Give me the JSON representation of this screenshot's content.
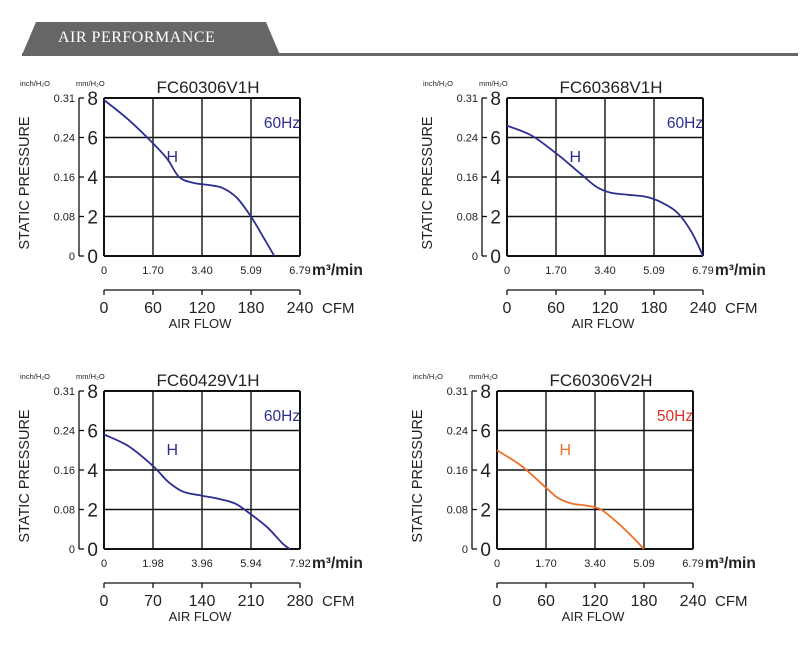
{
  "header": {
    "title": "AIR PERFORMANCE"
  },
  "chart_data": [
    {
      "type": "line",
      "title": "FC60306V1H",
      "frequency": "60Hz",
      "freq_color": "#2b2e8f",
      "curve_color": "#2b2e8f",
      "curve_label": "H",
      "ylabel": "STATIC PRESSURE",
      "unit_inch": "inch/H₂O",
      "unit_mm": "mm/H₂O",
      "ylim": [
        0,
        8
      ],
      "yticks_mm": [
        "0",
        "2",
        "4",
        "6",
        "8"
      ],
      "yticks_inch": [
        "0",
        "0.08",
        "0.16",
        "0.24",
        "0.31"
      ],
      "xlim_m3": [
        0,
        6.79
      ],
      "xticks_m3": [
        "0",
        "1.70",
        "3.40",
        "5.09",
        "6.79"
      ],
      "xunit_m3": "m³/min",
      "xticks_cfm": [
        "0",
        "60",
        "120",
        "180",
        "240"
      ],
      "xunit_cfm": "CFM",
      "xlabel": "AIR FLOW",
      "x": [
        0,
        0.85,
        1.7,
        2.2,
        2.6,
        3.1,
        3.6,
        4.1,
        4.6,
        5.09,
        5.5,
        5.9
      ],
      "y": [
        7.9,
        6.9,
        5.7,
        4.9,
        4.0,
        3.7,
        3.6,
        3.45,
        2.95,
        2.0,
        1.0,
        0
      ]
    },
    {
      "type": "line",
      "title": "FC60368V1H",
      "frequency": "60Hz",
      "freq_color": "#2b2e8f",
      "curve_color": "#2b2e8f",
      "curve_label": "H",
      "ylabel": "STATIC PRESSURE",
      "unit_inch": "inch/H₂O",
      "unit_mm": "mm/H₂O",
      "ylim": [
        0,
        8
      ],
      "yticks_mm": [
        "0",
        "2",
        "4",
        "6",
        "8"
      ],
      "yticks_inch": [
        "0",
        "0.08",
        "0.16",
        "0.24",
        "0.31"
      ],
      "xlim_m3": [
        0,
        6.79
      ],
      "xticks_m3": [
        "0",
        "1.70",
        "3.40",
        "5.09",
        "6.79"
      ],
      "xunit_m3": "m³/min",
      "xticks_cfm": [
        "0",
        "60",
        "120",
        "180",
        "240"
      ],
      "xunit_cfm": "CFM",
      "xlabel": "AIR FLOW",
      "x": [
        0,
        0.85,
        1.7,
        2.2,
        2.6,
        3.1,
        3.6,
        4.2,
        4.8,
        5.3,
        5.9,
        6.4,
        6.79
      ],
      "y": [
        6.6,
        6.1,
        5.2,
        4.6,
        4.1,
        3.5,
        3.2,
        3.1,
        3.0,
        2.75,
        2.2,
        1.2,
        0
      ]
    },
    {
      "type": "line",
      "title": "FC60429V1H",
      "frequency": "60Hz",
      "freq_color": "#2b2e8f",
      "curve_color": "#2b2e8f",
      "curve_label": "H",
      "ylabel": "STATIC PRESSURE",
      "unit_inch": "inch/H₂O",
      "unit_mm": "mm/H₂O",
      "ylim": [
        0,
        8
      ],
      "yticks_mm": [
        "0",
        "2",
        "4",
        "6",
        "8"
      ],
      "yticks_inch": [
        "0",
        "0.08",
        "0.16",
        "0.24",
        "0.31"
      ],
      "xlim_m3": [
        0,
        7.92
      ],
      "xticks_m3": [
        "0",
        "1.98",
        "3.96",
        "5.94",
        "7.92"
      ],
      "xunit_m3": "m³/min",
      "xticks_cfm": [
        "0",
        "70",
        "140",
        "210",
        "280"
      ],
      "xunit_cfm": "CFM",
      "xlabel": "AIR FLOW",
      "x": [
        0,
        1.0,
        1.98,
        2.6,
        3.2,
        3.96,
        4.6,
        5.3,
        5.94,
        6.6,
        7.2,
        7.5
      ],
      "y": [
        5.8,
        5.2,
        4.2,
        3.4,
        2.9,
        2.7,
        2.55,
        2.3,
        1.75,
        1.1,
        0.3,
        0
      ]
    },
    {
      "type": "line",
      "title": "FC60306V2H",
      "frequency": "50Hz",
      "freq_color": "#e0302b",
      "curve_color": "#ee7127",
      "curve_label": "H",
      "ylabel": "STATIC PRESSURE",
      "unit_inch": "inch/H₂O",
      "unit_mm": "mm/H₂O",
      "ylim": [
        0,
        8
      ],
      "yticks_mm": [
        "0",
        "2",
        "4",
        "6",
        "8"
      ],
      "yticks_inch": [
        "0",
        "0.08",
        "0.16",
        "0.24",
        "0.31"
      ],
      "xlim_m3": [
        0,
        6.79
      ],
      "xticks_m3": [
        "0",
        "1.70",
        "3.40",
        "5.09",
        "6.79"
      ],
      "xunit_m3": "m³/min",
      "xticks_cfm": [
        "0",
        "60",
        "120",
        "180",
        "240"
      ],
      "xunit_cfm": "CFM",
      "xlabel": "AIR FLOW",
      "x": [
        0,
        0.85,
        1.7,
        2.1,
        2.6,
        3.1,
        3.6,
        4.2,
        4.7,
        5.09
      ],
      "y": [
        5.0,
        4.2,
        3.1,
        2.6,
        2.3,
        2.2,
        2.0,
        1.3,
        0.6,
        0
      ]
    }
  ]
}
